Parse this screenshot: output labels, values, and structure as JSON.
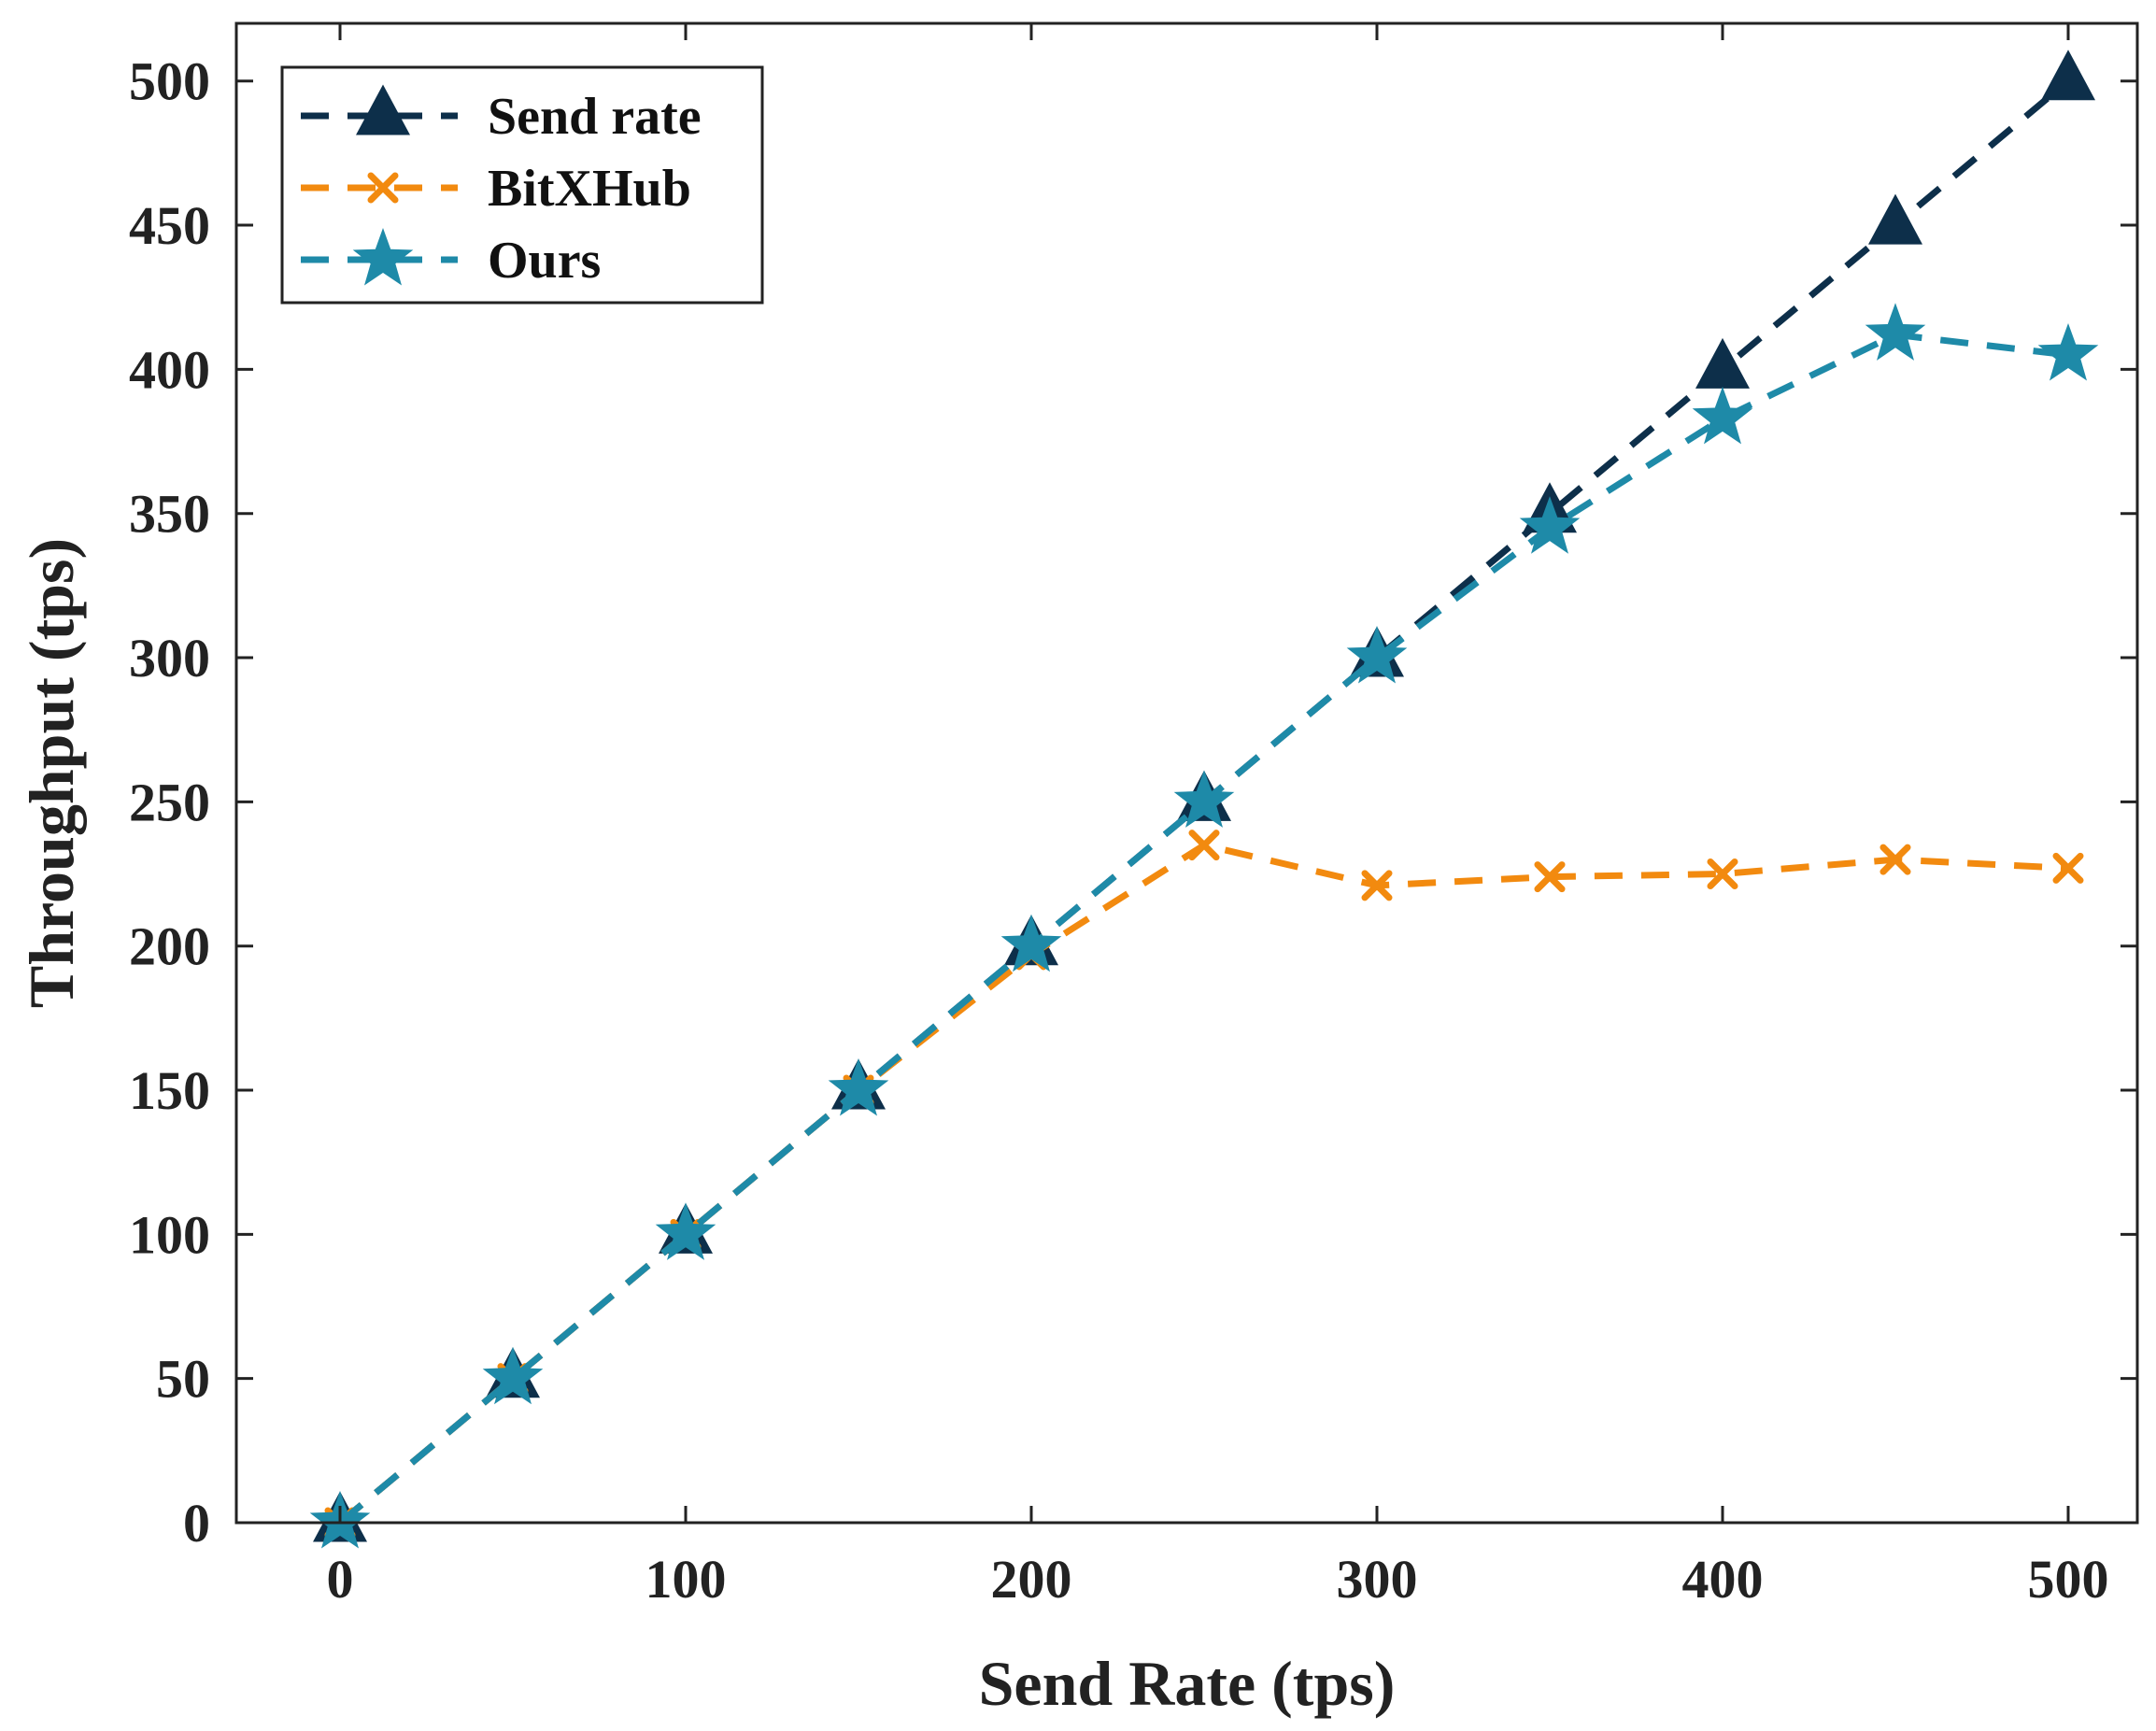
{
  "chart_data": {
    "type": "line",
    "title": "",
    "xlabel": "Send Rate (tps)",
    "ylabel": "Throughput (tps)",
    "xlim": [
      -30,
      520
    ],
    "ylim": [
      0,
      520
    ],
    "xticks": [
      0,
      100,
      200,
      300,
      400,
      500
    ],
    "yticks": [
      0,
      50,
      100,
      150,
      200,
      250,
      300,
      350,
      400,
      450,
      500
    ],
    "grid": false,
    "legend_position": "top-left",
    "x": [
      0,
      50,
      100,
      150,
      200,
      250,
      300,
      350,
      400,
      450,
      500
    ],
    "series": [
      {
        "name": "Send rate",
        "color": "#0d2f4a",
        "marker": "triangle",
        "line": "dashed",
        "values": [
          0,
          50,
          100,
          150,
          200,
          250,
          300,
          350,
          400,
          450,
          500
        ]
      },
      {
        "name": "BitXHub",
        "color": "#f28a0f",
        "marker": "x",
        "line": "dashed",
        "values": [
          0,
          50,
          100,
          150,
          197,
          235,
          221,
          224,
          225,
          230,
          227
        ]
      },
      {
        "name": "Ours",
        "color": "#1e8aa8",
        "marker": "star",
        "line": "dashed",
        "values": [
          0,
          50,
          100,
          150,
          200,
          250,
          300,
          345,
          383,
          412,
          405
        ]
      }
    ]
  }
}
